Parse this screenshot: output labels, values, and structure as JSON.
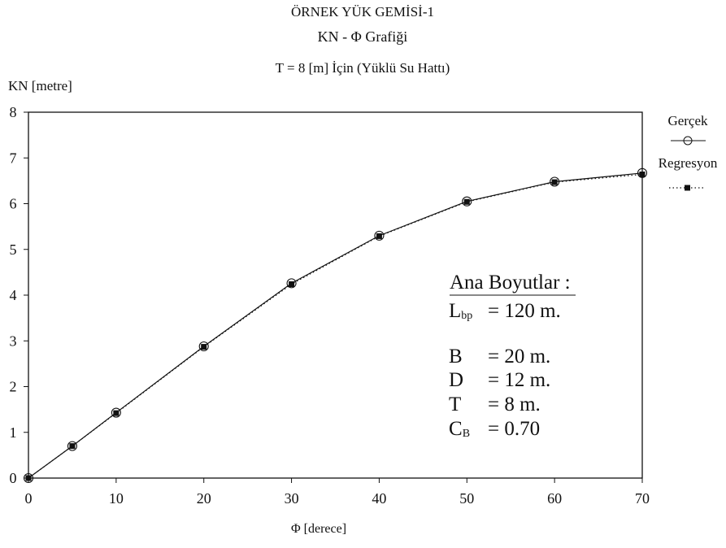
{
  "chart_data": {
    "type": "line",
    "title": "ÖRNEK YÜK GEMİSİ-1",
    "subtitle": "KN - Φ Grafiği",
    "subtitle2": "T = 8 [m] İçin (Yüklü Su Hattı)",
    "xlabel": "Φ [derece]",
    "ylabel": "KN [metre]",
    "xlim": [
      0,
      70
    ],
    "ylim": [
      0,
      8
    ],
    "x_ticks": [
      0,
      10,
      20,
      30,
      40,
      50,
      60,
      70
    ],
    "y_ticks": [
      0,
      1,
      2,
      3,
      4,
      5,
      6,
      7,
      8
    ],
    "grid": false,
    "legend_position": "right",
    "series": [
      {
        "name": "Gerçek",
        "style": "solid-line-circle-markers",
        "x": [
          0,
          5,
          10,
          20,
          30,
          40,
          50,
          60,
          70
        ],
        "y": [
          0.0,
          0.7,
          1.43,
          2.88,
          4.26,
          5.3,
          6.05,
          6.48,
          6.67
        ]
      },
      {
        "name": "Regresyon",
        "style": "dotted-line-square-markers",
        "x": [
          0,
          5,
          10,
          20,
          30,
          40,
          50,
          60,
          70
        ],
        "y": [
          0.0,
          0.7,
          1.42,
          2.87,
          4.24,
          5.29,
          6.04,
          6.47,
          6.64
        ]
      }
    ],
    "annotation": {
      "heading": "Ana Boyutlar :",
      "rows": [
        {
          "symbol": "L",
          "sub": "bp",
          "value": "= 120   m."
        },
        {
          "symbol": "B",
          "sub": "",
          "value": "= 20    m."
        },
        {
          "symbol": "D",
          "sub": "",
          "value": "= 12    m."
        },
        {
          "symbol": "T",
          "sub": "",
          "value": "= 8     m."
        },
        {
          "symbol": "C",
          "sub": "B",
          "value": "= 0.70"
        }
      ]
    },
    "colors": {
      "line": "#111111",
      "marker": "#111111",
      "background": "#ffffff"
    }
  }
}
